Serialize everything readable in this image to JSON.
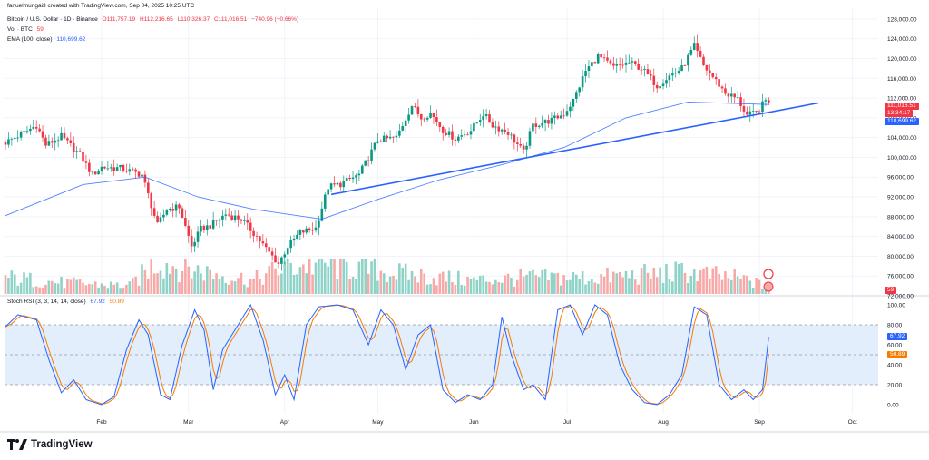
{
  "header": {
    "line1": "fanuelmungai3 created with TradingView.com, Sep 04, 2025 10:25 UTC",
    "symbol": "Bitcoin / U.S. Dollar · 1D · Binance",
    "o": "O111,757.19",
    "h": "H112,216.65",
    "l": "L110,326.37",
    "c": "C111,016.51",
    "chg": "−740.96 (−0.66%)",
    "vol_label": "Vol · BTC",
    "vol_value": "59",
    "ema_label": "EMA (100, close)",
    "ema_value": "110,699.62"
  },
  "price_tags": {
    "last_price": "111,016.51",
    "countdown": "13:34:17",
    "ema": "110,699.62",
    "volume": "59"
  },
  "stoch_tags": {
    "k": "67.92",
    "d": "50.89"
  },
  "stoch_header": {
    "label": "Stoch RSI (3, 3, 14, 14, close)",
    "k": "67.92",
    "d": "50.89"
  },
  "footer": {
    "brand": "TradingView"
  },
  "colors": {
    "up": "#089981",
    "down": "#f23645",
    "vol_up": "#8fd3c8",
    "vol_down": "#f7a9a7",
    "ema": "#2962ff",
    "trendline": "#2962ff",
    "k_line": "#2962ff",
    "d_line": "#f57c00",
    "band": "#e3eefc",
    "grid": "#f0f3fa",
    "last_price_tag": "#f23645",
    "ema_tag": "#2962ff"
  },
  "chart_data": {
    "type": "candlestick",
    "title": "Bitcoin / U.S. Dollar · 1D · Binance",
    "x_tick_labels": [
      "Feb",
      "Mar",
      "Apr",
      "May",
      "Jun",
      "Jul",
      "Aug",
      "Sep",
      "Oct"
    ],
    "price_axis": {
      "ticks": [
        72000,
        76000,
        80000,
        84000,
        88000,
        92000,
        96000,
        100000,
        104000,
        108000,
        112000,
        116000,
        120000,
        124000,
        128000
      ],
      "tick_labels": [
        "72,000.00",
        "76,000.00",
        "80,000.00",
        "84,000.00",
        "88,000.00",
        "92,000.00",
        "96,000.00",
        "100,000.00",
        "104,000.00",
        "108,000.00",
        "112,000.00",
        "116,000.00",
        "120,000.00",
        "124,000.00",
        "128,000.00"
      ],
      "range": [
        72000,
        130000
      ]
    },
    "close_path": [
      {
        "day": 0,
        "close": 103000
      },
      {
        "day": 6,
        "close": 105000
      },
      {
        "day": 10,
        "close": 106500
      },
      {
        "day": 13,
        "close": 102500
      },
      {
        "day": 18,
        "close": 104200
      },
      {
        "day": 24,
        "close": 100500
      },
      {
        "day": 28,
        "close": 96500
      },
      {
        "day": 31,
        "close": 98000
      },
      {
        "day": 37,
        "close": 97800
      },
      {
        "day": 44,
        "close": 96500
      },
      {
        "day": 49,
        "close": 86200
      },
      {
        "day": 52,
        "close": 89500
      },
      {
        "day": 56,
        "close": 90000
      },
      {
        "day": 60,
        "close": 82000
      },
      {
        "day": 63,
        "close": 85500
      },
      {
        "day": 66,
        "close": 86200
      },
      {
        "day": 71,
        "close": 88500
      },
      {
        "day": 76,
        "close": 87500
      },
      {
        "day": 81,
        "close": 84000
      },
      {
        "day": 84,
        "close": 81500
      },
      {
        "day": 88,
        "close": 78500
      },
      {
        "day": 91,
        "close": 82000
      },
      {
        "day": 95,
        "close": 84800
      },
      {
        "day": 100,
        "close": 85700
      },
      {
        "day": 104,
        "close": 94000
      },
      {
        "day": 108,
        "close": 94600
      },
      {
        "day": 114,
        "close": 96500
      },
      {
        "day": 120,
        "close": 103500
      },
      {
        "day": 126,
        "close": 104000
      },
      {
        "day": 131,
        "close": 110500
      },
      {
        "day": 134,
        "close": 108000
      },
      {
        "day": 137,
        "close": 109000
      },
      {
        "day": 141,
        "close": 105500
      },
      {
        "day": 145,
        "close": 103800
      },
      {
        "day": 150,
        "close": 105500
      },
      {
        "day": 154,
        "close": 108800
      },
      {
        "day": 157,
        "close": 106500
      },
      {
        "day": 162,
        "close": 105000
      },
      {
        "day": 167,
        "close": 101000
      },
      {
        "day": 170,
        "close": 106500
      },
      {
        "day": 176,
        "close": 107500
      },
      {
        "day": 180,
        "close": 108800
      },
      {
        "day": 183,
        "close": 111500
      },
      {
        "day": 187,
        "close": 117500
      },
      {
        "day": 191,
        "close": 120500
      },
      {
        "day": 196,
        "close": 118200
      },
      {
        "day": 201,
        "close": 119200
      },
      {
        "day": 205,
        "close": 118000
      },
      {
        "day": 210,
        "close": 114500
      },
      {
        "day": 214,
        "close": 116500
      },
      {
        "day": 218,
        "close": 118000
      },
      {
        "day": 222,
        "close": 122500
      },
      {
        "day": 225,
        "close": 118500
      },
      {
        "day": 229,
        "close": 115500
      },
      {
        "day": 232,
        "close": 113000
      },
      {
        "day": 236,
        "close": 111800
      },
      {
        "day": 239,
        "close": 108500
      },
      {
        "day": 242,
        "close": 109000
      },
      {
        "day": 245,
        "close": 111500
      },
      {
        "day": 246,
        "close": 111016.51
      }
    ],
    "ema100": [
      {
        "day": 0,
        "value": 88200
      },
      {
        "day": 25,
        "value": 94500
      },
      {
        "day": 45,
        "value": 96000
      },
      {
        "day": 62,
        "value": 92000
      },
      {
        "day": 80,
        "value": 89500
      },
      {
        "day": 102,
        "value": 87500
      },
      {
        "day": 120,
        "value": 91500
      },
      {
        "day": 140,
        "value": 95500
      },
      {
        "day": 160,
        "value": 98500
      },
      {
        "day": 180,
        "value": 102000
      },
      {
        "day": 200,
        "value": 108000
      },
      {
        "day": 220,
        "value": 111200
      },
      {
        "day": 246,
        "value": 110699.62
      }
    ],
    "trendline": [
      {
        "day": 105,
        "price": 92500
      },
      {
        "day": 262,
        "price": 111000
      }
    ],
    "last": {
      "price": 111016.51,
      "ema100": 110699.62,
      "volume": 59
    },
    "volume_path": [
      {
        "day": 0,
        "value": 6
      },
      {
        "day": 20,
        "value": 4
      },
      {
        "day": 40,
        "value": 3
      },
      {
        "day": 49,
        "value": 12
      },
      {
        "day": 60,
        "value": 9
      },
      {
        "day": 80,
        "value": 5
      },
      {
        "day": 90,
        "value": 10
      },
      {
        "day": 104,
        "value": 11
      },
      {
        "day": 130,
        "value": 7
      },
      {
        "day": 150,
        "value": 5
      },
      {
        "day": 170,
        "value": 6
      },
      {
        "day": 190,
        "value": 6
      },
      {
        "day": 220,
        "value": 8
      },
      {
        "day": 240,
        "value": 5
      },
      {
        "day": 246,
        "value": 2
      }
    ],
    "stoch_rsi": {
      "label": "Stoch RSI (3, 3, 14, 14, close)",
      "axis_ticks": [
        0,
        20,
        40,
        60,
        80,
        100
      ],
      "tick_labels": [
        "0.00",
        "20.00",
        "40.00",
        "60.00",
        "80.00",
        "100.00"
      ],
      "band": [
        20,
        80
      ],
      "k_last": 67.92,
      "d_last": 50.89,
      "k_path": [
        {
          "day": 0,
          "value": 78
        },
        {
          "day": 4,
          "value": 90
        },
        {
          "day": 10,
          "value": 85
        },
        {
          "day": 14,
          "value": 45
        },
        {
          "day": 18,
          "value": 12
        },
        {
          "day": 22,
          "value": 25
        },
        {
          "day": 26,
          "value": 5
        },
        {
          "day": 31,
          "value": 0
        },
        {
          "day": 35,
          "value": 8
        },
        {
          "day": 39,
          "value": 55
        },
        {
          "day": 43,
          "value": 85
        },
        {
          "day": 46,
          "value": 70
        },
        {
          "day": 50,
          "value": 10
        },
        {
          "day": 53,
          "value": 5
        },
        {
          "day": 57,
          "value": 60
        },
        {
          "day": 61,
          "value": 95
        },
        {
          "day": 64,
          "value": 75
        },
        {
          "day": 67,
          "value": 15
        },
        {
          "day": 70,
          "value": 55
        },
        {
          "day": 75,
          "value": 80
        },
        {
          "day": 79,
          "value": 100
        },
        {
          "day": 83,
          "value": 65
        },
        {
          "day": 87,
          "value": 10
        },
        {
          "day": 90,
          "value": 30
        },
        {
          "day": 93,
          "value": 5
        },
        {
          "day": 97,
          "value": 80
        },
        {
          "day": 101,
          "value": 98
        },
        {
          "day": 107,
          "value": 100
        },
        {
          "day": 112,
          "value": 95
        },
        {
          "day": 117,
          "value": 60
        },
        {
          "day": 121,
          "value": 95
        },
        {
          "day": 125,
          "value": 80
        },
        {
          "day": 129,
          "value": 35
        },
        {
          "day": 133,
          "value": 70
        },
        {
          "day": 137,
          "value": 80
        },
        {
          "day": 141,
          "value": 15
        },
        {
          "day": 145,
          "value": 2
        },
        {
          "day": 149,
          "value": 10
        },
        {
          "day": 153,
          "value": 5
        },
        {
          "day": 157,
          "value": 20
        },
        {
          "day": 160,
          "value": 88
        },
        {
          "day": 163,
          "value": 50
        },
        {
          "day": 167,
          "value": 15
        },
        {
          "day": 170,
          "value": 20
        },
        {
          "day": 174,
          "value": 5
        },
        {
          "day": 178,
          "value": 95
        },
        {
          "day": 182,
          "value": 100
        },
        {
          "day": 186,
          "value": 70
        },
        {
          "day": 190,
          "value": 100
        },
        {
          "day": 194,
          "value": 90
        },
        {
          "day": 198,
          "value": 40
        },
        {
          "day": 202,
          "value": 15
        },
        {
          "day": 206,
          "value": 2
        },
        {
          "day": 210,
          "value": 0
        },
        {
          "day": 214,
          "value": 10
        },
        {
          "day": 218,
          "value": 30
        },
        {
          "day": 222,
          "value": 98
        },
        {
          "day": 226,
          "value": 90
        },
        {
          "day": 230,
          "value": 20
        },
        {
          "day": 234,
          "value": 5
        },
        {
          "day": 238,
          "value": 15
        },
        {
          "day": 241,
          "value": 5
        },
        {
          "day": 244,
          "value": 15
        },
        {
          "day": 246,
          "value": 67.92
        }
      ]
    }
  }
}
